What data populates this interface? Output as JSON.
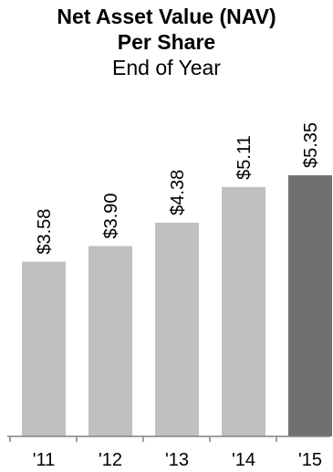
{
  "chart_data": {
    "type": "bar",
    "title": "Net Asset Value (NAV)",
    "title_line2": "Per Share",
    "subtitle": "End of Year",
    "categories": [
      "'11",
      "'12",
      "'13",
      "'14",
      "'15"
    ],
    "values": [
      3.58,
      3.9,
      4.38,
      5.11,
      5.35
    ],
    "value_labels": [
      "$3.58",
      "$3.90",
      "$4.38",
      "$5.11",
      "$5.35"
    ],
    "bar_colors": [
      "#c0c0c0",
      "#c0c0c0",
      "#c0c0c0",
      "#c0c0c0",
      "#707070"
    ],
    "axis_color": "#808080",
    "xlabel": "",
    "ylabel": "",
    "ylim": [
      0,
      5.35
    ],
    "grid": false,
    "legend": "none"
  }
}
